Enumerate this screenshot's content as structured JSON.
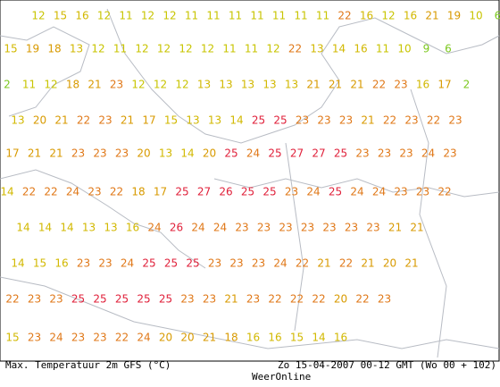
{
  "map": {
    "rows": [
      [
        12,
        15,
        16,
        12,
        11,
        12,
        12,
        11,
        11,
        11,
        11,
        11,
        11,
        11,
        22,
        16,
        12,
        16,
        21,
        19,
        10,
        6
      ],
      [
        15,
        19,
        18,
        13,
        12,
        11,
        12,
        12,
        12,
        12,
        11,
        11,
        12,
        22,
        13,
        14,
        16,
        11,
        10,
        9,
        6
      ],
      [
        2,
        11,
        12,
        18,
        21,
        23,
        12,
        12,
        12,
        13,
        13,
        13,
        13,
        13,
        21,
        21,
        21,
        22,
        23,
        16,
        17,
        2
      ],
      [
        13,
        20,
        21,
        22,
        23,
        21,
        17,
        15,
        13,
        13,
        14,
        25,
        25,
        23,
        23,
        23,
        21,
        22,
        23,
        22,
        23
      ],
      [
        17,
        21,
        21,
        23,
        23,
        23,
        20,
        13,
        14,
        20,
        25,
        24,
        25,
        27,
        27,
        25,
        23,
        23,
        23,
        24,
        23
      ],
      [
        14,
        22,
        22,
        24,
        23,
        22,
        18,
        17,
        25,
        27,
        26,
        25,
        25,
        23,
        24,
        25,
        24,
        24,
        23,
        23,
        22
      ],
      [
        14,
        14,
        14,
        13,
        13,
        16,
        24,
        26,
        24,
        24,
        23,
        23,
        23,
        23,
        23,
        23,
        23,
        21,
        21
      ],
      [
        14,
        15,
        16,
        23,
        23,
        24,
        25,
        25,
        25,
        23,
        23,
        23,
        24,
        22,
        21,
        22,
        21,
        20,
        21
      ],
      [
        22,
        23,
        23,
        25,
        25,
        25,
        25,
        25,
        23,
        23,
        21,
        23,
        22,
        22,
        22,
        20,
        22,
        23
      ],
      [
        15,
        23,
        24,
        23,
        23,
        22,
        24,
        20,
        20,
        21,
        18,
        16,
        16,
        15,
        14,
        16
      ]
    ]
  },
  "footer": {
    "left": "Max. Temperatuur 2m GFS (°C)",
    "right": "Zo 15-04-2007 00-12 GMT (Wo 00 + 102)",
    "credit": "WeerOnline"
  }
}
